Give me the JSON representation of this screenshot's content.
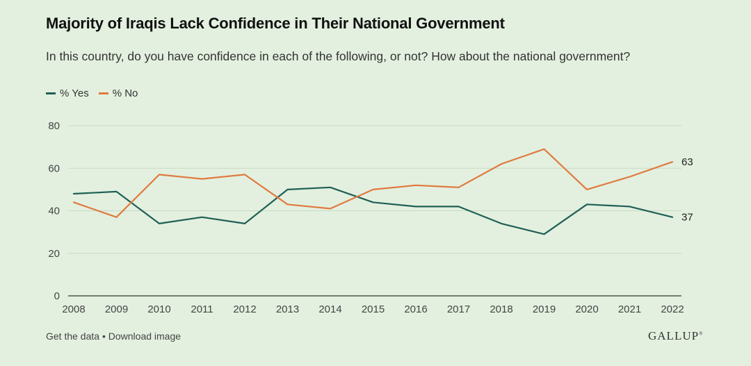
{
  "header": {
    "title": "Majority of Iraqis Lack Confidence in Their National Government",
    "subtitle": "In this country, do you have confidence in each of the following, or not? How about the national government?"
  },
  "legend": {
    "yes_label": "% Yes",
    "no_label": "% No"
  },
  "footer": {
    "get_data": "Get the data",
    "separator": " • ",
    "download": "Download image",
    "brand": "GALLUP"
  },
  "colors": {
    "yes": "#1f5f55",
    "no": "#e07a3f",
    "grid": "#c9d9c4",
    "axis": "#333333"
  },
  "chart_data": {
    "type": "line",
    "title": "Majority of Iraqis Lack Confidence in Their National Government",
    "xlabel": "",
    "ylabel": "",
    "x": [
      2008,
      2009,
      2010,
      2011,
      2012,
      2013,
      2014,
      2015,
      2016,
      2017,
      2018,
      2019,
      2020,
      2021,
      2022
    ],
    "yticks": [
      0,
      20,
      40,
      60,
      80
    ],
    "ylim": [
      0,
      80
    ],
    "grid": true,
    "legend_position": "top-left",
    "series": [
      {
        "name": "% Yes",
        "color": "#1f5f55",
        "values": [
          48,
          49,
          34,
          37,
          34,
          50,
          51,
          44,
          42,
          42,
          34,
          29,
          43,
          42,
          37
        ],
        "end_label": "37"
      },
      {
        "name": "% No",
        "color": "#e07a3f",
        "values": [
          44,
          37,
          57,
          55,
          57,
          43,
          41,
          50,
          52,
          51,
          62,
          69,
          50,
          56,
          63
        ],
        "end_label": "63"
      }
    ]
  }
}
